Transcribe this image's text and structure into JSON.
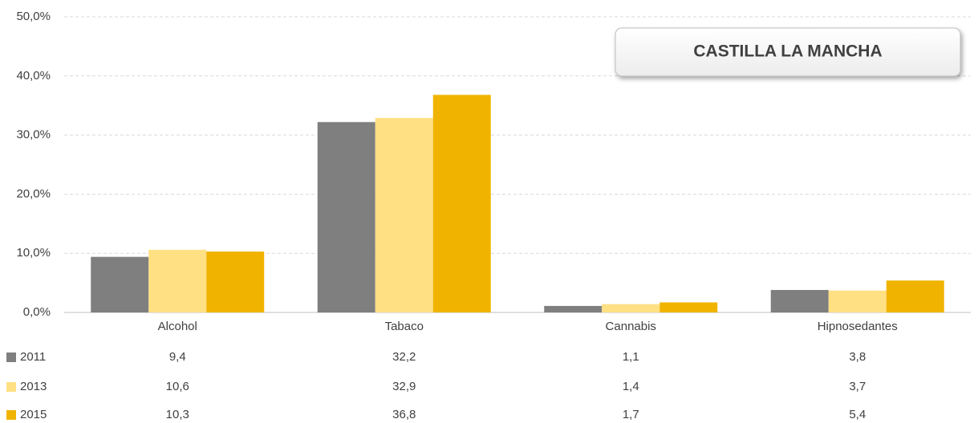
{
  "chart_data": {
    "type": "bar",
    "title": "CASTILLA LA MANCHA",
    "categories": [
      "Alcohol",
      "Tabaco",
      "Cannabis",
      "Hipnosedantes"
    ],
    "series": [
      {
        "name": "2011",
        "color": "#7f7f7f",
        "values": [
          9.4,
          32.2,
          1.1,
          3.8
        ],
        "value_labels": [
          "9,4",
          "32,2",
          "1,1",
          "3,8"
        ]
      },
      {
        "name": "2013",
        "color": "#ffe083",
        "values": [
          10.6,
          32.9,
          1.4,
          3.7
        ],
        "value_labels": [
          "10,6",
          "32,9",
          "1,4",
          "3,7"
        ]
      },
      {
        "name": "2015",
        "color": "#f0b400",
        "values": [
          10.3,
          36.8,
          1.7,
          5.4
        ],
        "value_labels": [
          "10,3",
          "36,8",
          "1,7",
          "5,4"
        ]
      }
    ],
    "ylim": [
      0,
      50
    ],
    "yticks": [
      {
        "value": 0,
        "label": "0,0%"
      },
      {
        "value": 10,
        "label": "10,0%"
      },
      {
        "value": 20,
        "label": "20,0%"
      },
      {
        "value": 30,
        "label": "30,0%"
      },
      {
        "value": 40,
        "label": "40,0%"
      },
      {
        "value": 50,
        "label": "50,0%"
      }
    ],
    "grid": true
  }
}
